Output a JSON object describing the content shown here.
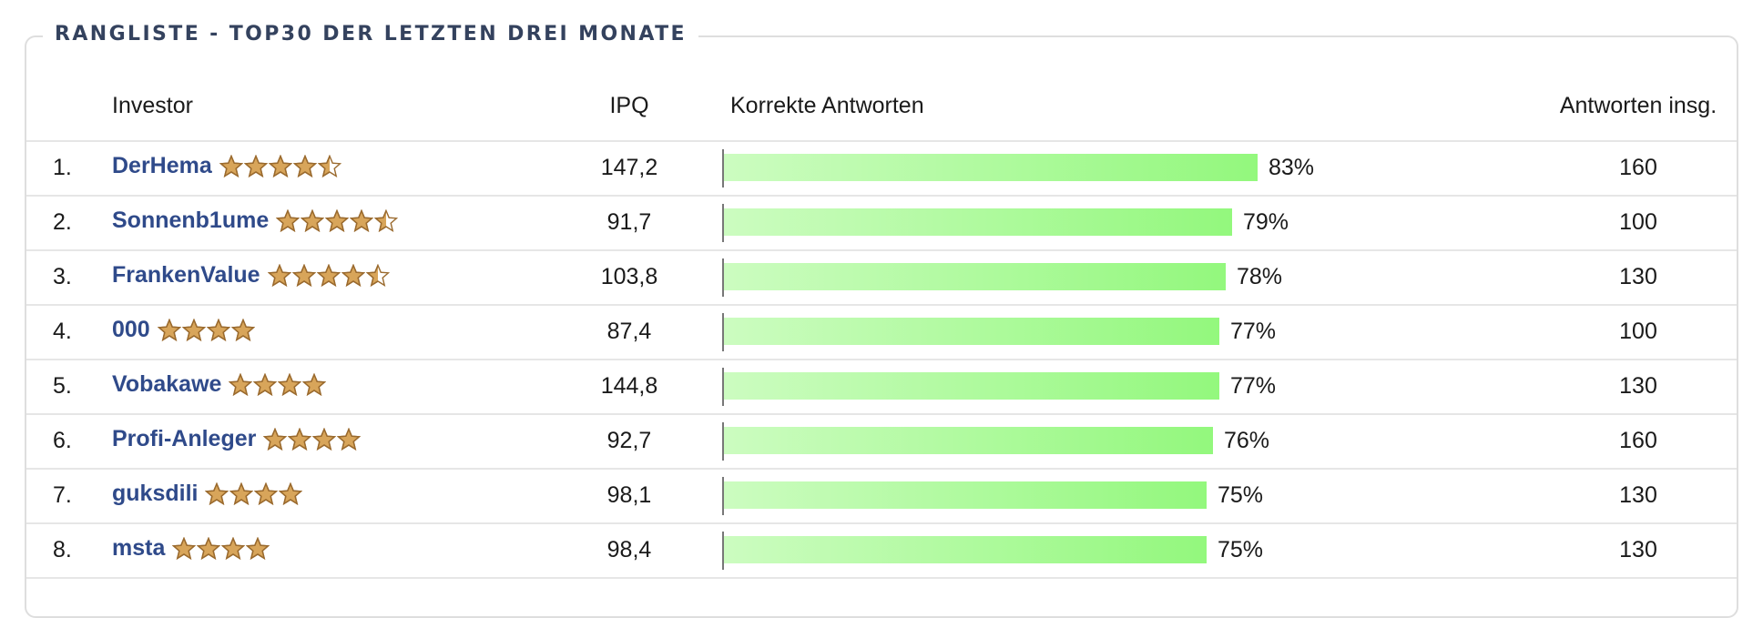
{
  "panel": {
    "title": "RANGLISTE - TOP30 DER LETZTEN DREI MONATE"
  },
  "table": {
    "headers": {
      "investor": "Investor",
      "ipq": "IPQ",
      "correct": "Korrekte Antworten",
      "total": "Antworten insg."
    },
    "bar_color_start": "#ccfcc0",
    "bar_color_end": "#93f87d",
    "star_color": "#d8a55a",
    "name_color": "#2f4a8a",
    "rows": [
      {
        "rank": "1.",
        "name": "DerHema",
        "stars": 4.5,
        "ipq": "147,2",
        "correct_pct": 83,
        "correct_label": "83%",
        "total": "160"
      },
      {
        "rank": "2.",
        "name": "Sonnenb1ume",
        "stars": 4.5,
        "ipq": "91,7",
        "correct_pct": 79,
        "correct_label": "79%",
        "total": "100"
      },
      {
        "rank": "3.",
        "name": "FrankenValue",
        "stars": 4.5,
        "ipq": "103,8",
        "correct_pct": 78,
        "correct_label": "78%",
        "total": "130"
      },
      {
        "rank": "4.",
        "name": "000",
        "stars": 4,
        "ipq": "87,4",
        "correct_pct": 77,
        "correct_label": "77%",
        "total": "100"
      },
      {
        "rank": "5.",
        "name": "Vobakawe",
        "stars": 4,
        "ipq": "144,8",
        "correct_pct": 77,
        "correct_label": "77%",
        "total": "130"
      },
      {
        "rank": "6.",
        "name": "Profi-Anleger",
        "stars": 4,
        "ipq": "92,7",
        "correct_pct": 76,
        "correct_label": "76%",
        "total": "160"
      },
      {
        "rank": "7.",
        "name": "guksdili",
        "stars": 4,
        "ipq": "98,1",
        "correct_pct": 75,
        "correct_label": "75%",
        "total": "130"
      },
      {
        "rank": "8.",
        "name": "msta",
        "stars": 4,
        "ipq": "98,4",
        "correct_pct": 75,
        "correct_label": "75%",
        "total": "130"
      }
    ]
  }
}
